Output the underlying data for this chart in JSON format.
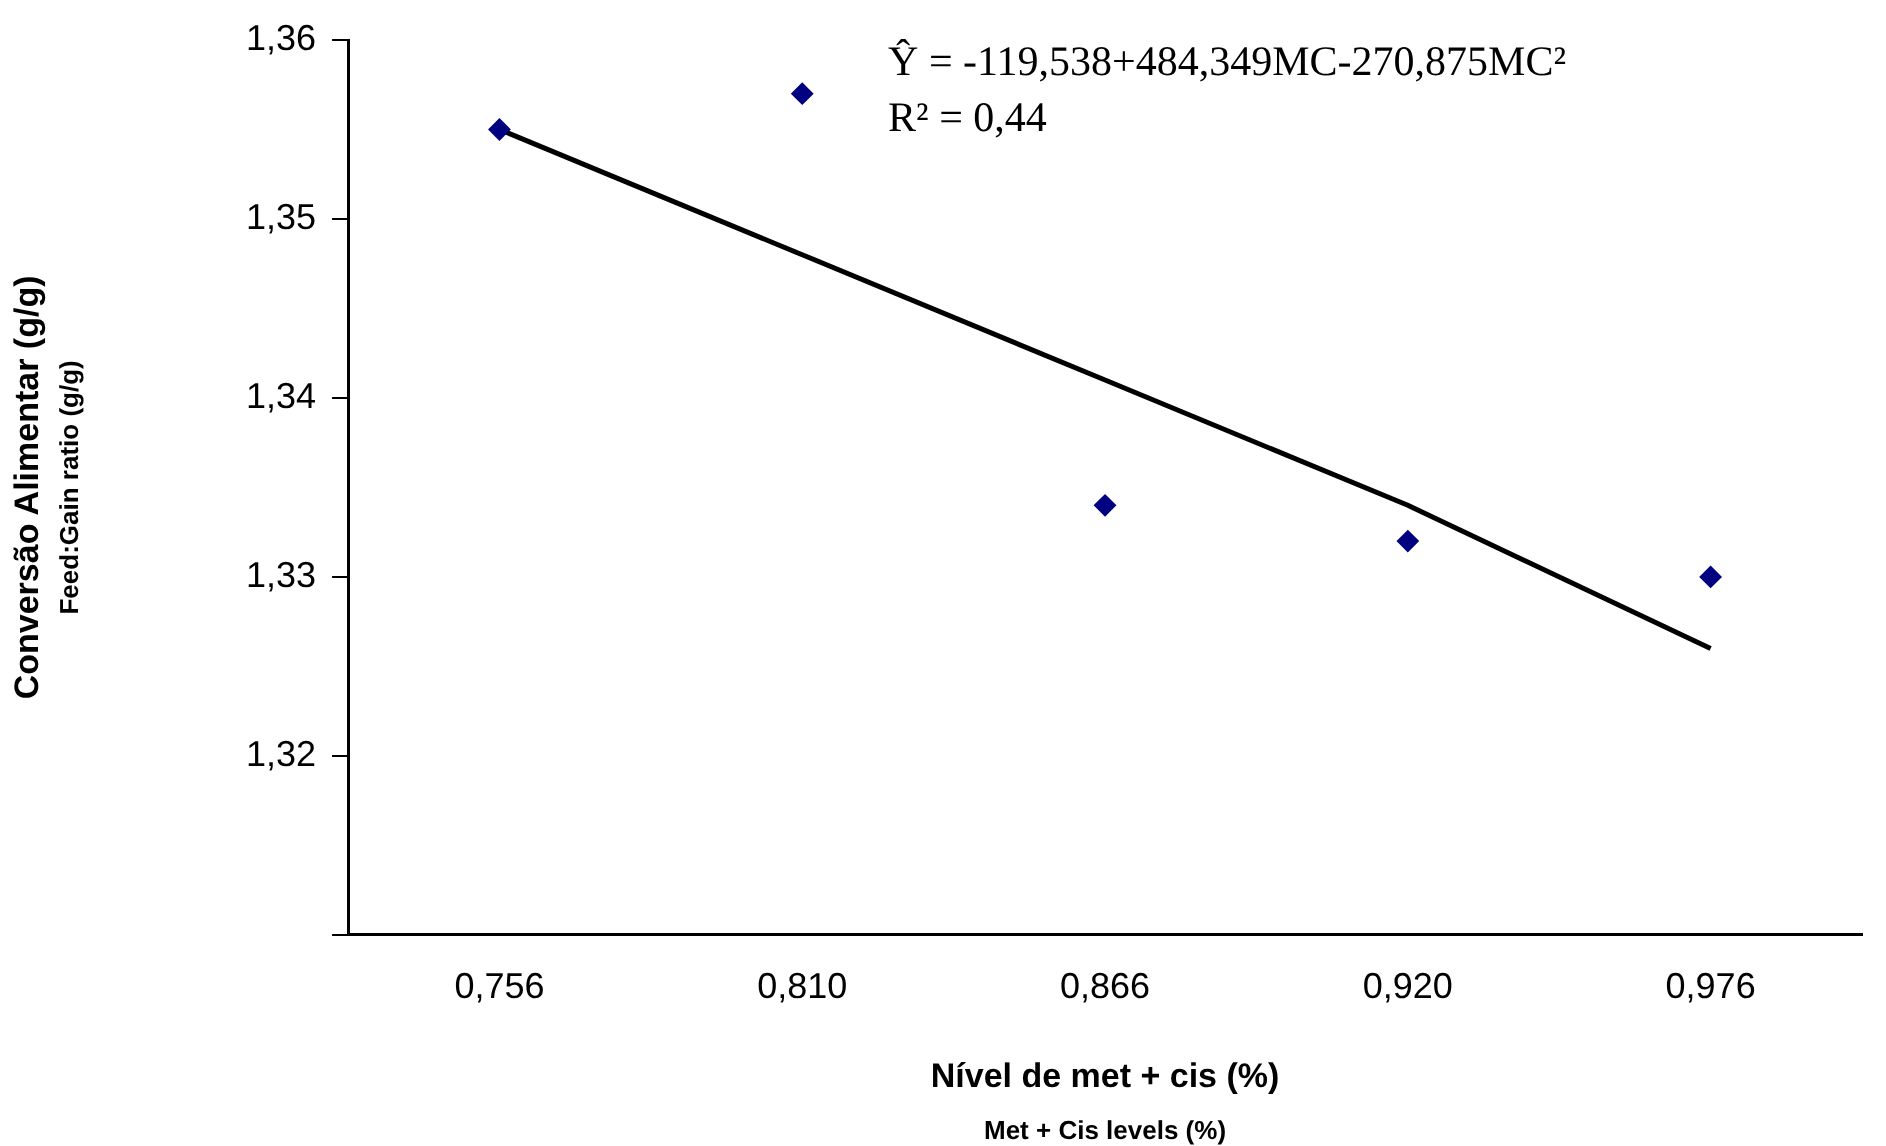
{
  "chart_data": {
    "type": "scatter",
    "xlabel": "Nível de met + cis (%)\nMet + Cis levels (%)",
    "ylabel": "Conversão Alimentar (g/g)\nFeed:Gain ratio (g/g)",
    "categories": [
      "0,756",
      "0,810",
      "0,866",
      "0,920",
      "0,976"
    ],
    "series": [
      {
        "type": "scatter",
        "color": "#000080",
        "values": [
          1.355,
          1.357,
          1.334,
          1.332,
          1.33
        ],
        "marker": "diamond"
      },
      {
        "type": "line",
        "color": "#000000",
        "values": [
          1.355,
          1.348,
          1.341,
          1.334,
          1.326
        ],
        "marker": "none",
        "line_style": "solid"
      }
    ],
    "ylim": [
      1.31,
      1.36
    ],
    "yticks": [
      {
        "value": 1.31,
        "label": null
      },
      {
        "value": 1.32,
        "label": "1,32"
      },
      {
        "value": 1.33,
        "label": "1,33"
      },
      {
        "value": 1.34,
        "label": "1,34"
      },
      {
        "value": 1.35,
        "label": "1,35"
      },
      {
        "value": 1.36,
        "label": "1,36"
      }
    ],
    "grid": false,
    "legend": false,
    "annotations": [
      "Ŷ = -119,538+484,349MC-270,875MC²",
      "R² = 0,44"
    ]
  }
}
